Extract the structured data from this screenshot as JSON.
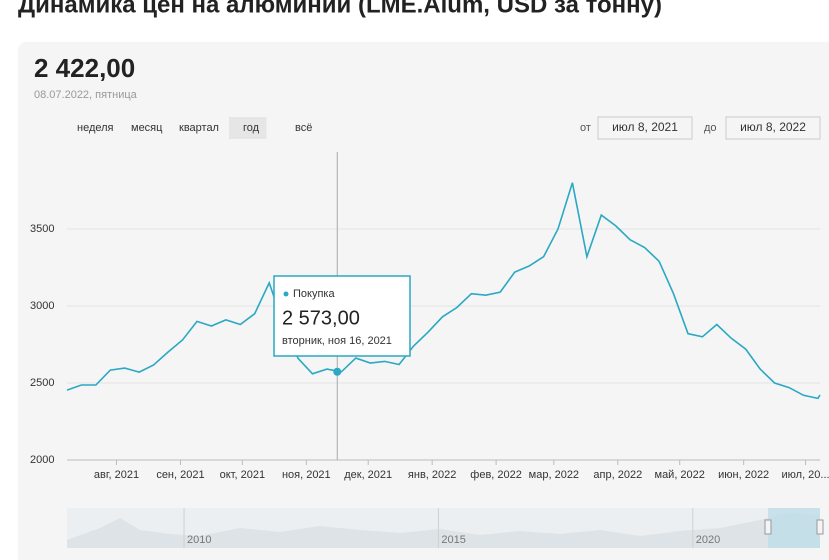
{
  "chart_data": {
    "type": "line",
    "title": "Динамика цен на алюминий (LME.Alum, USD за тонну)",
    "header": {
      "value_label": "2 422,00",
      "date": "08.07.2022, пятница"
    },
    "controls": {
      "periods": [
        "неделя",
        "месяц",
        "квартал",
        "год",
        "всё"
      ],
      "selected": "год",
      "from_label": "от",
      "from": "июл 8, 2021",
      "to_label": "до",
      "to": "июл 8, 2022"
    },
    "x": [
      "2021-07-08",
      "2021-07-15",
      "2021-07-22",
      "2021-07-29",
      "2021-08-05",
      "2021-08-12",
      "2021-08-19",
      "2021-08-26",
      "2021-09-02",
      "2021-09-09",
      "2021-09-16",
      "2021-09-23",
      "2021-09-30",
      "2021-10-07",
      "2021-10-14",
      "2021-10-21",
      "2021-10-28",
      "2021-11-04",
      "2021-11-11",
      "2021-11-18",
      "2021-11-25",
      "2021-12-02",
      "2021-12-09",
      "2021-12-16",
      "2021-12-23",
      "2021-12-30",
      "2022-01-06",
      "2022-01-13",
      "2022-01-20",
      "2022-01-27",
      "2022-02-03",
      "2022-02-10",
      "2022-02-17",
      "2022-02-24",
      "2022-03-03",
      "2022-03-10",
      "2022-03-17",
      "2022-03-24",
      "2022-03-31",
      "2022-04-07",
      "2022-04-14",
      "2022-04-21",
      "2022-04-28",
      "2022-05-05",
      "2022-05-12",
      "2022-05-19",
      "2022-05-26",
      "2022-06-02",
      "2022-06-09",
      "2022-06-16",
      "2022-06-23",
      "2022-06-30",
      "2022-07-07",
      "2022-07-08"
    ],
    "series": [
      {
        "name": "Покупка",
        "color": "#2aa8c4",
        "values": [
          2454,
          2487,
          2487,
          2584,
          2597,
          2571,
          2617,
          2701,
          2779,
          2900,
          2870,
          2910,
          2880,
          2950,
          3150,
          2880,
          2660,
          2560,
          2590,
          2573,
          2662,
          2630,
          2640,
          2620,
          2740,
          2830,
          2930,
          2990,
          3080,
          3070,
          3090,
          3220,
          3260,
          3320,
          3500,
          3800,
          3320,
          3590,
          3520,
          3430,
          3380,
          3290,
          3080,
          2820,
          2800,
          2880,
          2790,
          2720,
          2590,
          2500,
          2470,
          2420,
          2400,
          2422
        ]
      }
    ],
    "xlim": [
      "2021-07-08",
      "2022-07-08"
    ],
    "xticks": [
      {
        "value": "2021-08-01",
        "label": "авг, 2021"
      },
      {
        "value": "2021-09-01",
        "label": "сен, 2021"
      },
      {
        "value": "2021-10-01",
        "label": "окт, 2021"
      },
      {
        "value": "2021-11-01",
        "label": "ноя, 2021"
      },
      {
        "value": "2021-12-01",
        "label": "дек, 2021"
      },
      {
        "value": "2022-01-01",
        "label": "янв, 2022"
      },
      {
        "value": "2022-02-01",
        "label": "фев, 2022"
      },
      {
        "value": "2022-03-01",
        "label": "мар, 2022"
      },
      {
        "value": "2022-04-01",
        "label": "апр, 2022"
      },
      {
        "value": "2022-05-01",
        "label": "май, 2022"
      },
      {
        "value": "2022-06-01",
        "label": "июн, 2022"
      },
      {
        "value": "2022-07-01",
        "label": "июл, 20..."
      }
    ],
    "ylim": [
      2000,
      4000
    ],
    "yticks": [
      2000,
      2500,
      3000,
      3500
    ],
    "grid": true,
    "tooltip": {
      "series_name": "Покупка",
      "x": "2021-11-16",
      "date": "вторник, ноя 16, 2021",
      "value": 2573,
      "value_label": "2 573,00"
    },
    "navigator": {
      "xlim": [
        2007.7,
        2022.5
      ],
      "xticks": [
        2010,
        2015,
        2020
      ]
    }
  }
}
